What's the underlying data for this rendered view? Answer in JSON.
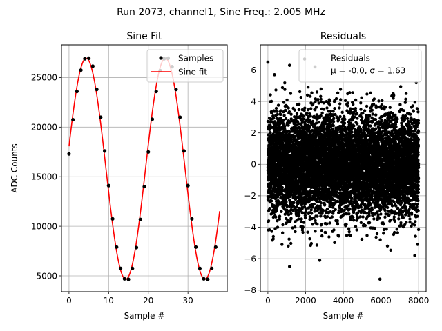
{
  "suptitle": "Run 2073, channel1, Sine Freq.: 2.005 MHz",
  "chart_data": [
    {
      "type": "scatter+line",
      "title": "Sine Fit",
      "xlabel": "Sample #",
      "ylabel": "ADC Counts",
      "xlim": [
        -1.9,
        39.9
      ],
      "ylim": [
        3400,
        28300
      ],
      "xticks": [
        0,
        10,
        20,
        30
      ],
      "yticks": [
        5000,
        10000,
        15000,
        20000,
        25000
      ],
      "grid": true,
      "legend": {
        "placement": "top-right",
        "entries": [
          "Samples",
          "Sine fit"
        ]
      },
      "series": [
        {
          "name": "Samples",
          "kind": "scatter",
          "color": "#000000",
          "x": [
            0,
            1,
            2,
            3,
            4,
            5,
            6,
            7,
            8,
            9,
            10,
            11,
            12,
            13,
            14,
            15,
            16,
            17,
            18,
            19,
            20,
            21,
            22,
            23,
            24,
            25,
            26,
            27,
            28,
            29,
            30,
            31,
            32,
            33,
            34,
            35,
            36,
            37
          ],
          "y": [
            17300,
            20750,
            23600,
            25750,
            26900,
            26950,
            26150,
            23800,
            21000,
            17600,
            14100,
            10750,
            7900,
            5750,
            4700,
            4650,
            5750,
            7850,
            10700,
            14000,
            17500,
            20800,
            23600,
            25700,
            26900,
            26950,
            26100,
            23800,
            21000,
            17600,
            14100,
            10750,
            7900,
            5750,
            4700,
            4650,
            5750,
            7900
          ]
        },
        {
          "name": "Sine fit",
          "kind": "line",
          "color": "#ff0000",
          "function": {
            "offset": 15800,
            "amplitude": 11150,
            "period": 19.95,
            "phase_sample": -0.65,
            "x_range": [
              0,
              38
            ]
          }
        }
      ]
    },
    {
      "type": "scatter",
      "title": "Residuals",
      "xlabel": "Sample #",
      "ylabel": "",
      "xlim": [
        -400,
        8400
      ],
      "ylim": [
        -8.1,
        7.6
      ],
      "xticks": [
        0,
        2000,
        4000,
        6000,
        8000
      ],
      "yticks": [
        -8,
        -6,
        -4,
        -2,
        0,
        2,
        4,
        6
      ],
      "grid": true,
      "legend": {
        "placement": "top-right",
        "entries": [
          "Residuals",
          "μ = -0.0, σ = 1.63"
        ]
      },
      "series": [
        {
          "name": "Residuals",
          "kind": "scatter",
          "color": "#000000",
          "n_points": 8000,
          "mean": -0.0,
          "std": 1.63,
          "x_range": [
            0,
            8000
          ],
          "notable_points": [
            {
              "x": 0,
              "y": 6.5
            },
            {
              "x": 350,
              "y": 5.7
            },
            {
              "x": 1150,
              "y": 6.3
            },
            {
              "x": 1950,
              "y": 6.7
            },
            {
              "x": 2500,
              "y": 6.2
            },
            {
              "x": 1150,
              "y": -6.5
            },
            {
              "x": 2750,
              "y": -6.1
            },
            {
              "x": 5950,
              "y": -7.3
            },
            {
              "x": 7800,
              "y": -5.8
            }
          ]
        }
      ]
    }
  ]
}
